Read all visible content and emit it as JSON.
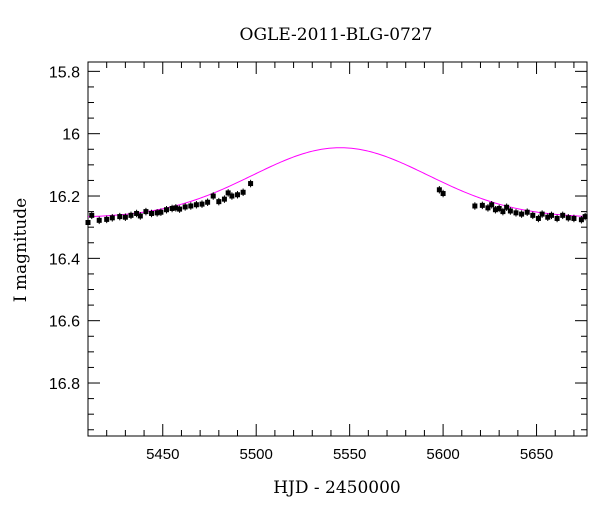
{
  "chart_data": {
    "type": "scatter",
    "title": "OGLE-2011-BLG-0727",
    "xlabel": "HJD - 2450000",
    "ylabel": "I magnitude",
    "xlim": [
      5410,
      5677
    ],
    "ylim": [
      16.97,
      15.77
    ],
    "y_inverted": true,
    "x_ticks": [
      5450,
      5500,
      5550,
      5600,
      5650
    ],
    "x_tick_labels": [
      "5450",
      "5500",
      "5550",
      "5600",
      "5650"
    ],
    "y_ticks": [
      15.8,
      16,
      16.2,
      16.4,
      16.6,
      16.8
    ],
    "y_tick_labels": [
      "15.8",
      "16",
      "16.2",
      "16.4",
      "16.6",
      "16.8"
    ],
    "grid": false,
    "model": {
      "color": "#ff00ff",
      "baseline": 16.27,
      "peak_mag": 16.045,
      "t0": 5545,
      "tE": 47
    },
    "series": [
      {
        "marker_color": "#000000",
        "x": [
          5410,
          5412,
          5416,
          5420,
          5423,
          5427,
          5430,
          5433,
          5436,
          5438,
          5441,
          5444,
          5447,
          5449,
          5452,
          5455,
          5457,
          5459,
          5462,
          5465,
          5468,
          5471,
          5474,
          5477,
          5480,
          5483,
          5485,
          5487,
          5490,
          5493,
          5497,
          5598,
          5600,
          5617,
          5621,
          5624,
          5626,
          5628,
          5630,
          5632,
          5634,
          5636,
          5639,
          5642,
          5645,
          5648,
          5651,
          5653,
          5656,
          5658,
          5661,
          5664,
          5667,
          5670,
          5674,
          5676
        ],
        "y": [
          16.285,
          16.262,
          16.278,
          16.275,
          16.27,
          16.266,
          16.268,
          16.262,
          16.256,
          16.264,
          16.25,
          16.256,
          16.254,
          16.252,
          16.244,
          16.24,
          16.238,
          16.242,
          16.235,
          16.232,
          16.228,
          16.226,
          16.22,
          16.2,
          16.218,
          16.21,
          16.19,
          16.2,
          16.196,
          16.188,
          16.16,
          16.18,
          16.192,
          16.232,
          16.23,
          16.238,
          16.228,
          16.244,
          16.24,
          16.25,
          16.236,
          16.248,
          16.254,
          16.258,
          16.252,
          16.262,
          16.272,
          16.258,
          16.268,
          16.262,
          16.272,
          16.262,
          16.27,
          16.272,
          16.276,
          16.266
        ],
        "err": 0.012
      }
    ]
  }
}
